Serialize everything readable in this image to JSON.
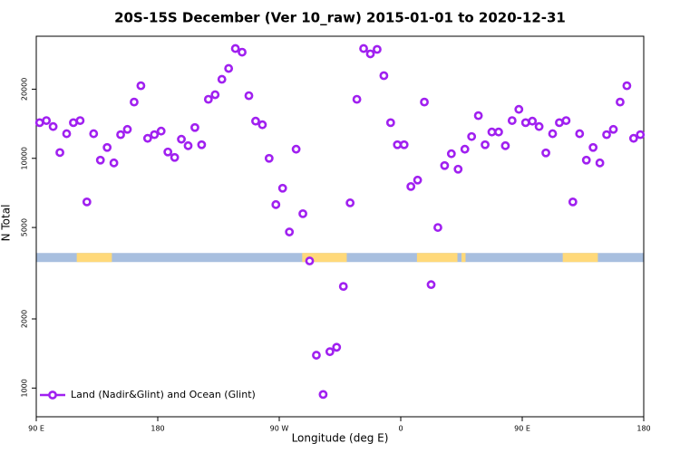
{
  "chart_data": {
    "type": "scatter",
    "title": "20S-15S December (Ver 10_raw)   2015-01-01 to 2020-12-31",
    "x_label": "Longitude (deg E)",
    "y_label": "N Total",
    "xlim": [
      90,
      540
    ],
    "xticks": [
      {
        "value": 90,
        "label": "90 E"
      },
      180,
      {
        "value": 270,
        "label": "90 W"
      },
      {
        "value": 360,
        "label": "0"
      },
      {
        "value": 450,
        "label": "90 E"
      },
      {
        "value": 540,
        "label": "180"
      }
    ],
    "ylim": [
      750,
      34000
    ],
    "y_scale": "log",
    "yticks": [
      1000,
      2000,
      5000,
      10000,
      20000
    ],
    "legend_position": "bottom-left",
    "surface_band": {
      "y": 3700,
      "ocean_color": "#a8bfdf",
      "land_color": "#ffd97a",
      "land_ranges": [
        [
          120,
          146
        ],
        [
          287,
          320
        ],
        [
          372,
          402
        ],
        [
          405,
          408
        ],
        [
          480,
          506
        ]
      ]
    },
    "series": [
      {
        "name": "Land (Nadir&Glint) and Ocean (Glint)",
        "color": "#a020f0",
        "x": [
          92.5,
          97.5,
          102.5,
          107.5,
          112.5,
          117.5,
          122.5,
          127.5,
          132.5,
          137.5,
          142.5,
          147.5,
          152.5,
          157.5,
          162.5,
          167.5,
          172.5,
          177.5,
          182.5,
          187.5,
          192.5,
          197.5,
          202.5,
          207.5,
          212.5,
          217.5,
          222.5,
          227.5,
          232.5,
          237.5,
          242.5,
          247.5,
          252.5,
          257.5,
          262.5,
          267.5,
          272.5,
          277.5,
          282.5,
          287.5,
          292.5,
          297.5,
          302.5,
          307.5,
          312.5,
          317.5,
          322.5,
          327.5,
          332.5,
          337.5,
          342.5,
          347.5,
          352.5,
          357.5,
          362.5,
          367.5,
          372.5,
          377.5,
          382.5,
          387.5,
          392.5,
          397.5,
          402.5,
          407.5,
          412.5,
          417.5,
          422.5,
          427.5,
          432.5,
          437.5,
          442.5,
          447.5,
          452.5,
          457.5,
          462.5,
          467.5,
          472.5,
          477.5,
          482.5,
          487.5,
          492.5,
          497.5,
          502.5,
          507.5,
          512.5,
          517.5,
          522.5,
          527.5,
          532.5,
          537.5
        ],
        "values": [
          14300,
          14600,
          13750,
          10600,
          12800,
          14300,
          14600,
          6460,
          12800,
          9820,
          11150,
          9550,
          12680,
          13370,
          17580,
          20700,
          12220,
          12680,
          13140,
          10660,
          10090,
          12110,
          11350,
          13620,
          11460,
          18070,
          18920,
          22080,
          24620,
          30060,
          28980,
          18740,
          14520,
          14000,
          10000,
          6290,
          7410,
          4780,
          10960,
          5740,
          3575,
          1390,
          938,
          1440,
          1505,
          2770,
          6400,
          18070,
          30060,
          28490,
          29800,
          22900,
          14300,
          11460,
          11460,
          7540,
          8040,
          17580,
          2820,
          5000,
          9300,
          10470,
          8970,
          10960,
          12440,
          15340,
          11460,
          13020,
          13020,
          11350,
          14600,
          16340,
          14300,
          14520,
          13750,
          10560,
          12800,
          14300,
          14600,
          6460,
          12800,
          9820,
          11150,
          9550,
          12680,
          13370,
          17580,
          20700,
          12220,
          12680
        ]
      }
    ]
  }
}
